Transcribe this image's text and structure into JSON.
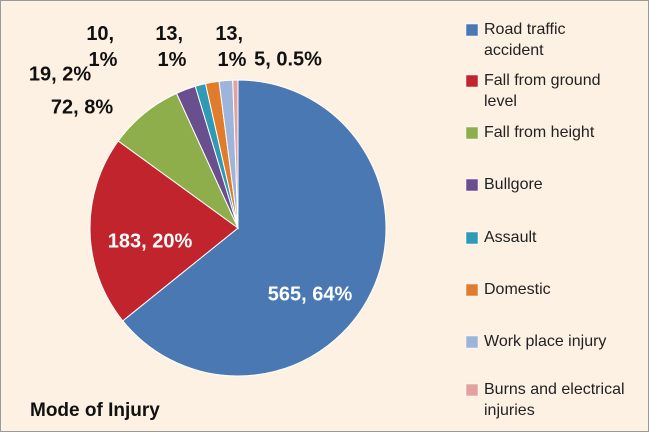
{
  "chart_data": {
    "type": "pie",
    "title": "Mode of Injury",
    "categories": [
      "Road traffic accident",
      "Fall from ground level",
      "Fall from height",
      "Bullgore",
      "Assault",
      "Domestic",
      "Work place injury",
      "Burns and electrical injuries"
    ],
    "values": [
      565,
      183,
      72,
      19,
      10,
      13,
      13,
      5
    ],
    "value_labels": [
      "565, 64%",
      "183, 20%",
      "72, 8%",
      "19, 2%",
      "10, 1%",
      "13, 1%",
      "13, 1%",
      "5, 0.5%"
    ],
    "colors": [
      "#4a78b3",
      "#c1242c",
      "#8eae4b",
      "#6a4f8e",
      "#2f99b6",
      "#e07c2b",
      "#9db4db",
      "#e3a29f"
    ],
    "legend": "right"
  }
}
